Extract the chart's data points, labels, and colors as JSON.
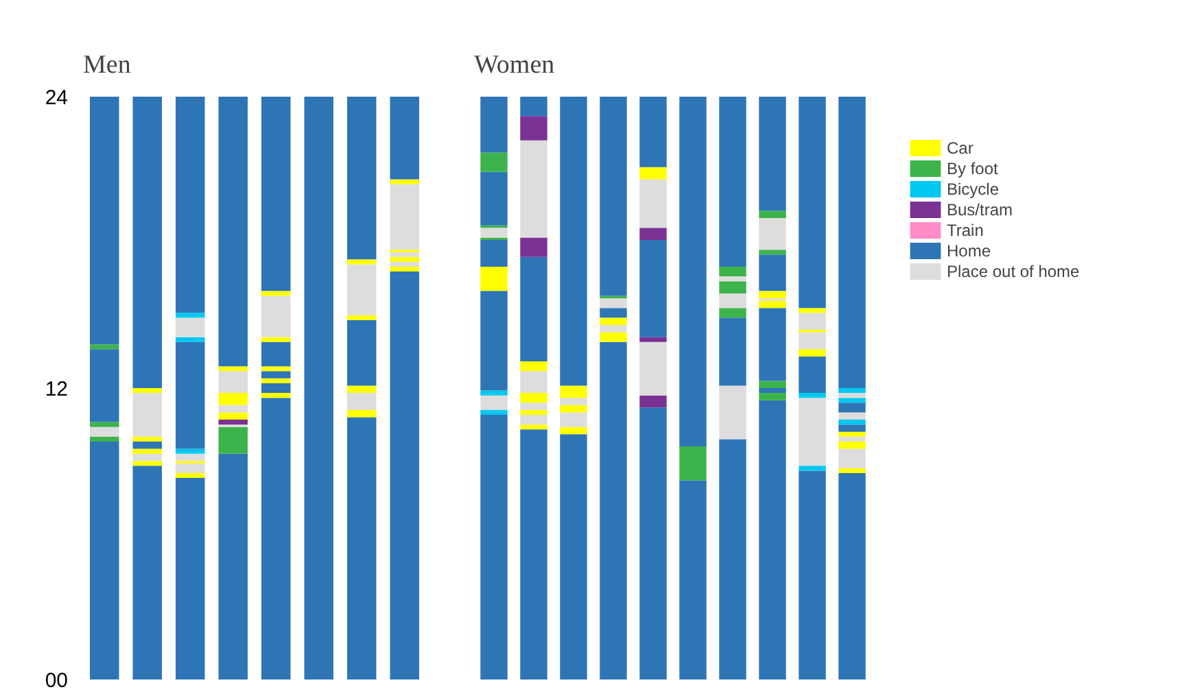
{
  "chart_data": [
    {
      "type": "bar",
      "title": "Men",
      "stacked": true,
      "ylim": [
        0,
        24
      ],
      "yticks": [
        {
          "value": 0,
          "label": "00"
        },
        12,
        24
      ],
      "tick_labels": "y",
      "categories": [
        null,
        null,
        null,
        null,
        null,
        null,
        null,
        null
      ],
      "series": [
        {
          "values": [
            9.8,
            8.8,
            8.3,
            9.3,
            11.6,
            24,
            10.8,
            16.8
          ],
          "colors": [
            "#2e75b6",
            "#2e75b6",
            "#2e75b6",
            "#2e75b6",
            "#2e75b6",
            "#2e75b6",
            "#2e75b6",
            "#2e75b6"
          ]
        },
        {
          "values": [
            0.2,
            0.2,
            0.2,
            1.1,
            0.2,
            null,
            0.3,
            0.2
          ],
          "colors": [
            "#3cb44b",
            "#ffff00",
            "#ffff00",
            "#3cb44b",
            "#ffff00",
            null,
            "#ffff00",
            "#ffff00"
          ]
        },
        {
          "values": [
            0.4,
            0.3,
            0.4,
            0.1,
            0.4,
            null,
            0.7,
            0.2
          ],
          "colors": [
            "#dddddd",
            "#dddddd",
            "#dddddd",
            "#dddddd",
            "#2e75b6",
            null,
            "#dddddd",
            "#dddddd"
          ]
        },
        {
          "values": [
            0.2,
            0.2,
            0.1,
            0.2,
            0.2,
            null,
            0.3,
            0.2
          ],
          "colors": [
            "#3cb44b",
            "#ffff00",
            "#ffff00",
            "#7b3294",
            "#ffff00",
            null,
            "#ffff00",
            "#ffff00"
          ]
        },
        {
          "values": [
            3.0,
            0.3,
            0.3,
            0.3,
            0.3,
            null,
            2.7,
            0.2
          ],
          "colors": [
            "#2e75b6",
            "#2e75b6",
            "#dddddd",
            "#ffff00",
            "#2e75b6",
            null,
            "#2e75b6",
            "#dddddd"
          ]
        },
        {
          "values": [
            0.2,
            0.2,
            0.2,
            0.3,
            0.2,
            null,
            0.2,
            0.1
          ],
          "colors": [
            "#3cb44b",
            "#ffff00",
            "#00c8f0",
            "#dddddd",
            "#ffff00",
            null,
            "#ffff00",
            "#ffff00"
          ]
        },
        {
          "values": [
            10.2,
            1.8,
            4.4,
            0.5,
            1.0,
            null,
            2.1,
            2.7
          ],
          "colors": [
            "#2e75b6",
            "#dddddd",
            "#2e75b6",
            "#ffff00",
            "#2e75b6",
            null,
            "#dddddd",
            "#dddddd"
          ]
        },
        {
          "values": [
            null,
            0.2,
            0.2,
            0.9,
            0.2,
            null,
            0.2,
            0.2
          ],
          "colors": [
            null,
            "#ffff00",
            "#00c8f0",
            "#dddddd",
            "#ffff00",
            null,
            "#ffff00",
            "#ffff00"
          ]
        },
        {
          "values": [
            null,
            12.0,
            0.8,
            0.2,
            1.7,
            null,
            6.7,
            3.4
          ],
          "colors": [
            null,
            "#2e75b6",
            "#dddddd",
            "#ffff00",
            "#dddddd",
            null,
            "#2e75b6",
            "#2e75b6"
          ]
        },
        {
          "values": [
            null,
            null,
            0.2,
            11.1,
            0.2,
            null,
            null,
            null
          ],
          "colors": [
            null,
            null,
            "#00c8f0",
            "#2e75b6",
            "#ffff00",
            null,
            null,
            null
          ]
        },
        {
          "values": [
            null,
            null,
            8.9,
            null,
            8.0,
            null,
            null,
            null
          ],
          "colors": [
            null,
            null,
            "#2e75b6",
            null,
            "#2e75b6",
            null,
            null,
            null
          ]
        }
      ]
    },
    {
      "type": "bar",
      "title": "Women",
      "stacked": true,
      "ylim": [
        0,
        24
      ],
      "tick_labels": false,
      "legend": "right",
      "categories": [
        null,
        null,
        null,
        null,
        null,
        null,
        null,
        null,
        null,
        null
      ],
      "series": [
        {
          "values": [
            10.9,
            10.3,
            10.1,
            13.9,
            11.2,
            8.2,
            9.9,
            11.5,
            8.6,
            8.5
          ],
          "colors": [
            "#2e75b6",
            "#2e75b6",
            "#2e75b6",
            "#2e75b6",
            "#2e75b6",
            "#2e75b6",
            "#2e75b6",
            "#2e75b6",
            "#2e75b6",
            "#2e75b6"
          ]
        },
        {
          "values": [
            0.2,
            0.2,
            0.3,
            0.4,
            0.5,
            1.4,
            2.2,
            0.3,
            0.2,
            0.2
          ],
          "colors": [
            "#00c8f0",
            "#ffff00",
            "#ffff00",
            "#ffff00",
            "#7b3294",
            "#3cb44b",
            "#dddddd",
            "#3cb44b",
            "#00c8f0",
            "#ffff00"
          ]
        },
        {
          "values": [
            0.6,
            0.4,
            0.6,
            0.3,
            2.2,
            14.4,
            2.8,
            0.2,
            2.8,
            0.8
          ],
          "colors": [
            "#dddddd",
            "#dddddd",
            "#dddddd",
            "#dddddd",
            "#dddddd",
            "#2e75b6",
            "#2e75b6",
            "#2e75b6",
            "#dddddd",
            "#dddddd"
          ]
        },
        {
          "values": [
            0.2,
            0.2,
            0.3,
            0.3,
            0.2,
            null,
            0.4,
            0.3,
            0.2,
            0.3
          ],
          "colors": [
            "#00c8f0",
            "#ffff00",
            "#ffff00",
            "#ffff00",
            "#7b3294",
            null,
            "#3cb44b",
            "#3cb44b",
            "#00c8f0",
            "#ffff00"
          ]
        },
        {
          "values": [
            4.1,
            0.3,
            0.3,
            0.4,
            4.0,
            null,
            0.6,
            3.0,
            1.5,
            0.2
          ],
          "colors": [
            "#2e75b6",
            "#dddddd",
            "#dddddd",
            "#2e75b6",
            "#2e75b6",
            null,
            "#dddddd",
            "#2e75b6",
            "#2e75b6",
            "#dddddd"
          ]
        },
        {
          "values": [
            1.0,
            0.4,
            0.5,
            0.4,
            0.5,
            null,
            0.5,
            0.3,
            0.3,
            0.2
          ],
          "colors": [
            "#ffff00",
            "#ffff00",
            "#ffff00",
            "#dddddd",
            "#7b3294",
            null,
            "#3cb44b",
            "#ffff00",
            "#ffff00",
            "#ffff00"
          ]
        },
        {
          "values": [
            1.1,
            0.9,
            11.9,
            0.1,
            2.0,
            null,
            0.2,
            0.1,
            0.7,
            0.3
          ],
          "colors": [
            "#2e75b6",
            "#dddddd",
            "#2e75b6",
            "#3cb44b",
            "#dddddd",
            null,
            "#dddddd",
            "#dddddd",
            "#dddddd",
            "#2e75b6"
          ]
        },
        {
          "values": [
            0.1,
            0.4,
            null,
            8.2,
            0.5,
            null,
            0.4,
            0.3,
            0.1,
            0.2
          ],
          "colors": [
            "#3cb44b",
            "#ffff00",
            null,
            "#2e75b6",
            "#ffff00",
            null,
            "#3cb44b",
            "#ffff00",
            "#ffff00",
            "#00c8f0"
          ]
        },
        {
          "values": [
            0.4,
            4.3,
            null,
            null,
            2.9,
            null,
            7.0,
            1.5,
            0.7,
            0.3
          ],
          "colors": [
            "#dddddd",
            "#2e75b6",
            null,
            null,
            "#2e75b6",
            null,
            "#2e75b6",
            "#2e75b6",
            "#dddddd",
            "#dddddd"
          ]
        },
        {
          "values": [
            0.1,
            0.8,
            null,
            null,
            null,
            null,
            null,
            0.2,
            0.2,
            0.4
          ],
          "colors": [
            "#3cb44b",
            "#7b3294",
            null,
            null,
            null,
            null,
            null,
            "#3cb44b",
            "#ffff00",
            "#2e75b6"
          ]
        },
        {
          "values": [
            2.2,
            4.0,
            null,
            null,
            null,
            null,
            null,
            1.3,
            8.7,
            0.2
          ],
          "colors": [
            "#2e75b6",
            "#dddddd",
            null,
            null,
            null,
            null,
            null,
            "#dddddd",
            "#2e75b6",
            "#00c8f0"
          ]
        },
        {
          "values": [
            0.8,
            1.0,
            null,
            null,
            null,
            null,
            null,
            0.3,
            null,
            0.2
          ],
          "colors": [
            "#3cb44b",
            "#7b3294",
            null,
            null,
            null,
            null,
            null,
            "#3cb44b",
            null,
            "#dddddd"
          ]
        },
        {
          "values": [
            2.3,
            0.8,
            null,
            null,
            null,
            null,
            null,
            4.7,
            null,
            0.2
          ],
          "colors": [
            "#2e75b6",
            "#2e75b6",
            null,
            null,
            null,
            null,
            null,
            "#2e75b6",
            null,
            "#00c8f0"
          ]
        },
        {
          "values": [
            null,
            null,
            null,
            null,
            null,
            null,
            null,
            null,
            null,
            12.0
          ],
          "colors": [
            null,
            null,
            null,
            null,
            null,
            null,
            null,
            null,
            null,
            "#2e75b6"
          ]
        },
        {
          "name": "Car",
          "color": "#ffff00",
          "values": [
            null,
            null,
            null,
            null,
            null,
            null,
            null,
            null,
            null,
            null
          ]
        },
        {
          "name": "By foot",
          "color": "#3cb44b",
          "values": [
            null,
            null,
            null,
            null,
            null,
            null,
            null,
            null,
            null,
            null
          ]
        },
        {
          "name": "Bicycle",
          "color": "#00c8f0",
          "values": [
            null,
            null,
            null,
            null,
            null,
            null,
            null,
            null,
            null,
            null
          ]
        },
        {
          "name": "Bus/tram",
          "color": "#7b3294",
          "values": [
            null,
            null,
            null,
            null,
            null,
            null,
            null,
            null,
            null,
            null
          ]
        },
        {
          "name": "Train",
          "color": "#ff8cc6",
          "values": [
            null,
            null,
            null,
            null,
            null,
            null,
            null,
            null,
            null,
            null
          ]
        },
        {
          "name": "Home",
          "color": "#2e75b6",
          "values": [
            null,
            null,
            null,
            null,
            null,
            null,
            null,
            null,
            null,
            null
          ]
        },
        {
          "name": "Place out of home",
          "color": "#dddddd",
          "values": [
            null,
            null,
            null,
            null,
            null,
            null,
            null,
            null,
            null,
            null
          ]
        }
      ]
    }
  ]
}
